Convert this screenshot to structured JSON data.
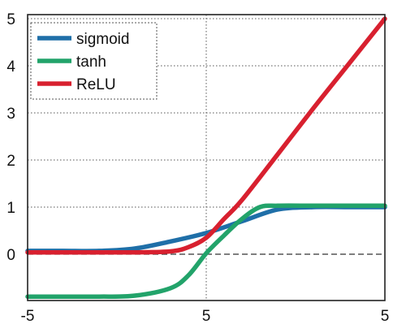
{
  "chart_data": {
    "type": "line",
    "title": "",
    "xlabel": "",
    "ylabel": "",
    "x_tick_labels": [
      "-5",
      "5",
      "5"
    ],
    "y_tick_labels": [
      "0",
      "1",
      "2",
      "3",
      "4",
      "5"
    ],
    "ylim": [
      -0.9,
      5
    ],
    "grid": true,
    "legend_position": "top-left",
    "series": [
      {
        "name": "sigmoid",
        "color": "#1f6fa8",
        "x": [
          -5,
          -4,
          -3,
          -2,
          -1,
          0,
          1,
          2,
          3,
          4,
          5
        ],
        "y": [
          0.07,
          0.07,
          0.07,
          0.12,
          0.27,
          0.45,
          0.7,
          0.95,
          1.0,
          1.0,
          1.0
        ]
      },
      {
        "name": "tanh",
        "color": "#22a36a",
        "x": [
          -5,
          -4,
          -3,
          -2,
          -1,
          -0.5,
          0,
          0.5,
          1,
          1.5,
          2,
          3,
          4,
          5
        ],
        "y": [
          -0.9,
          -0.9,
          -0.9,
          -0.88,
          -0.72,
          -0.45,
          0.02,
          0.4,
          0.75,
          1.0,
          1.03,
          1.03,
          1.03,
          1.03
        ]
      },
      {
        "name": "ReLU",
        "color": "#d8202f",
        "x": [
          -5,
          -4,
          -3,
          -2,
          -1,
          -0.5,
          0,
          0.5,
          1,
          2,
          3,
          4,
          5
        ],
        "y": [
          0.04,
          0.04,
          0.04,
          0.04,
          0.06,
          0.15,
          0.35,
          0.75,
          1.15,
          2.12,
          3.1,
          4.05,
          5.0
        ]
      }
    ]
  }
}
